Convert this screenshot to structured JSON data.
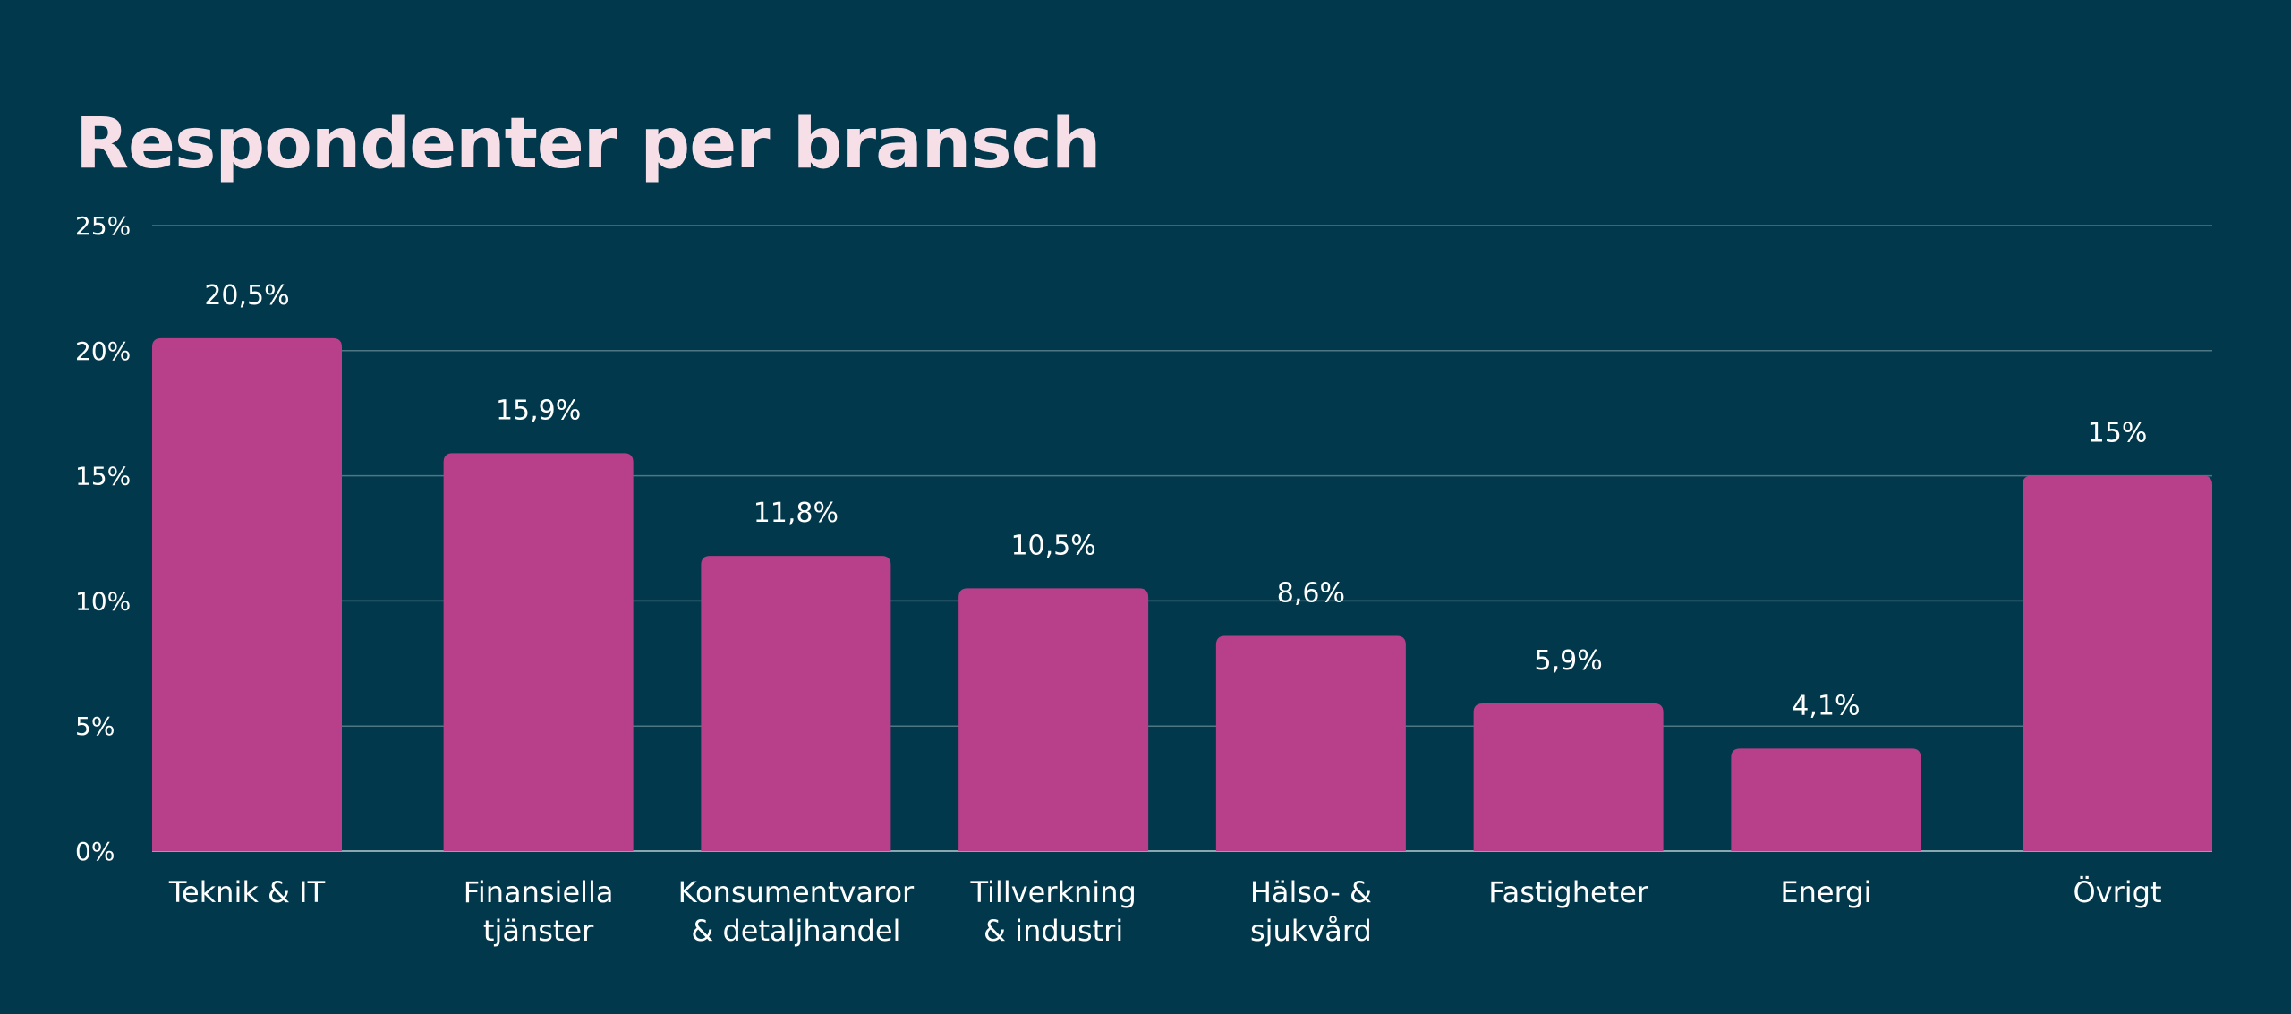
{
  "chart_data": {
    "type": "bar",
    "title": "Respondenter per bransch",
    "xlabel": "",
    "ylabel": "",
    "ylim": [
      0,
      25
    ],
    "yticks": [
      0,
      5,
      10,
      15,
      20,
      25
    ],
    "ytick_labels": [
      "0%",
      "5%",
      "10%",
      "15%",
      "20%",
      "25%"
    ],
    "grid": true,
    "categories": [
      [
        "Teknik & IT"
      ],
      [
        "Finansiella",
        "tjänster"
      ],
      [
        "Konsumentvaror",
        "& detaljhandel"
      ],
      [
        "Tillverkning",
        "& industri"
      ],
      [
        "Hälso- &",
        "sjukvård"
      ],
      [
        "Fastigheter"
      ],
      [
        "Energi"
      ],
      [
        "Övrigt"
      ]
    ],
    "values": [
      20.5,
      15.9,
      11.8,
      10.5,
      8.6,
      5.9,
      4.1,
      15
    ],
    "value_labels": [
      "20,5%",
      "15,9%",
      "11,8%",
      "10,5%",
      "8,6%",
      "5,9%",
      "4,1%",
      "15%"
    ]
  },
  "colors": {
    "background": "#02384b",
    "bar": "#b83f8a",
    "title": "#f7dfe8",
    "text": "#ffffff",
    "grid": "#4e7683",
    "axis": "#8aa7b0"
  }
}
